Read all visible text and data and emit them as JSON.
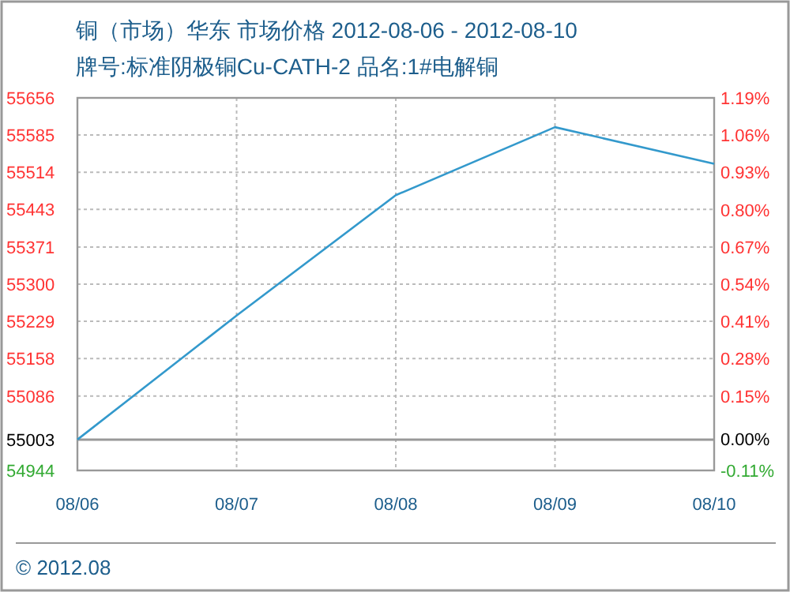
{
  "chart_data": {
    "type": "line",
    "title": "铜（市场）华东 市场价格 2012-08-06 - 2012-08-10",
    "subtitle": "牌号:标准阴极铜Cu-CATH-2 品名:1#电解铜",
    "categories": [
      "08/06",
      "08/07",
      "08/08",
      "08/09",
      "08/10"
    ],
    "series": [
      {
        "color": "#3399cc",
        "values": [
          55003,
          55240,
          55470,
          55600,
          55530
        ]
      }
    ],
    "ylim": [
      54944,
      55656
    ],
    "yticks": [
      54944,
      55003,
      55086,
      55158,
      55229,
      55300,
      55371,
      55443,
      55514,
      55585,
      55656
    ],
    "y2lim": [
      -0.11,
      1.19
    ],
    "y2ticks": [
      {
        "value": -0.11,
        "label": "-0.11%"
      },
      {
        "value": 0,
        "label": "0.00%"
      },
      {
        "value": 0.15,
        "label": "0.15%"
      },
      {
        "value": 0.28,
        "label": "0.28%"
      },
      {
        "value": 0.41,
        "label": "0.41%"
      },
      {
        "value": 0.54,
        "label": "0.54%"
      },
      {
        "value": 0.67,
        "label": "0.67%"
      },
      {
        "value": 0.8,
        "label": "0.80%"
      },
      {
        "value": 0.93,
        "label": "0.93%"
      },
      {
        "value": 1.06,
        "label": "1.06%"
      },
      {
        "value": 1.19,
        "label": "1.19%"
      }
    ],
    "ref_lines": [
      {
        "axis": "y",
        "value": 55003,
        "color": "#999999"
      }
    ],
    "grid": true,
    "annotations": [
      "© 2012.08"
    ]
  }
}
